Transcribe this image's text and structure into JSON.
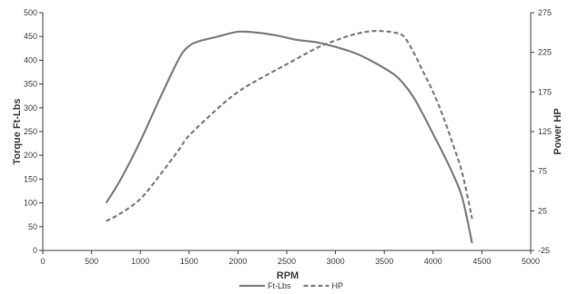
{
  "chart_data": {
    "type": "line",
    "xlabel": "RPM",
    "ylabel": "Torque Ft-Lbs",
    "y2label": "Power HP",
    "xlim": [
      0,
      5000
    ],
    "ylim": [
      0,
      500
    ],
    "y2lim": [
      -25,
      275
    ],
    "xticks": [
      0,
      500,
      1000,
      1500,
      2000,
      2500,
      3000,
      3500,
      4000,
      4500,
      5000
    ],
    "yticks": [
      0,
      50,
      100,
      150,
      200,
      250,
      300,
      350,
      400,
      450,
      500
    ],
    "y2ticks": [
      -25,
      25,
      75,
      125,
      175,
      225,
      275
    ],
    "grid": false,
    "legend_position": "bottom",
    "series": [
      {
        "name": "Ft-Lbs",
        "axis": "left",
        "style": "solid",
        "color": "#808080",
        "x": [
          650,
          800,
          1000,
          1200,
          1400,
          1500,
          1600,
          1800,
          2000,
          2200,
          2400,
          2600,
          2800,
          3000,
          3200,
          3400,
          3600,
          3700,
          3800,
          3900,
          4000,
          4100,
          4200,
          4300,
          4400
        ],
        "y": [
          100,
          150,
          230,
          320,
          405,
          430,
          440,
          450,
          460,
          458,
          452,
          443,
          438,
          428,
          415,
          395,
          370,
          350,
          322,
          285,
          245,
          205,
          162,
          110,
          15
        ]
      },
      {
        "name": "HP",
        "axis": "right",
        "style": "dashed",
        "color": "#808080",
        "x": [
          650,
          800,
          1000,
          1200,
          1400,
          1500,
          1800,
          2000,
          2200,
          2500,
          2800,
          3000,
          3200,
          3400,
          3600,
          3700,
          3800,
          3900,
          4000,
          4100,
          4200,
          4300,
          4400
        ],
        "y": [
          12,
          22,
          40,
          70,
          103,
          120,
          155,
          175,
          190,
          210,
          230,
          240,
          248,
          252,
          250,
          245,
          225,
          200,
          175,
          145,
          110,
          72,
          15
        ]
      }
    ]
  }
}
